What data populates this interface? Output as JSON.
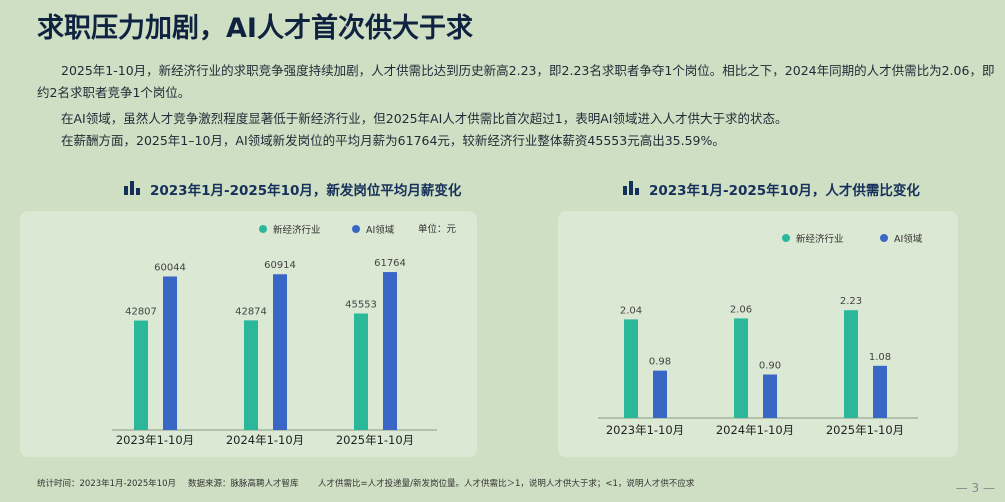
{
  "title": "求职压力加剧，AI人才首次供大于求",
  "paragraphs": [
    "2025年1-10月，新经济行业的求职竞争强度持续加剧，人才供需比达到历史新高2.23，即2.23名求职者争夺1个岗位。相比之下，2024年同期的人才供需比为2.06，即约2名求职者竞争1个岗位。",
    "在AI领域，虽然人才竞争激烈程度显著低于新经济行业，但2025年AI人才供需比首次超过1，表明AI领域进入人才供大于求的状态。",
    "在薪酬方面，2025年1–10月，AI领域新发岗位的平均月薪为61764元，较新经济行业整体薪资45553元高出35.59%。"
  ],
  "colors": {
    "teal": "#2bb79a",
    "blue": "#3a67c6",
    "title": "#0f2340"
  },
  "chart_data": [
    {
      "type": "bar",
      "title": "2023年1月-2025年10月，新发岗位平均月薪变化",
      "unit_label": "单位：元",
      "categories": [
        "2023年1-10月",
        "2024年1-10月",
        "2025年1-10月"
      ],
      "series": [
        {
          "name": "新经济行业",
          "values": [
            42807,
            42874,
            45553
          ]
        },
        {
          "name": "AI领域",
          "values": [
            60044,
            60914,
            61764
          ]
        }
      ],
      "ylim": [
        0,
        70000
      ],
      "legend": "top-right",
      "grid": false
    },
    {
      "type": "bar",
      "title": "2023年1月-2025年10月，人才供需比变化",
      "categories": [
        "2023年1-10月",
        "2024年1-10月",
        "2025年1-10月"
      ],
      "series": [
        {
          "name": "新经济行业",
          "values": [
            2.04,
            2.06,
            2.23
          ]
        },
        {
          "name": "AI领域",
          "values": [
            0.98,
            0.9,
            1.08
          ]
        }
      ],
      "ylim": [
        0,
        2.4
      ],
      "legend": "top-right",
      "grid": false
    }
  ],
  "footer": {
    "time": "统计时间：2023年1月-2025年10月",
    "source": "数据来源：脉脉高聘人才智库",
    "note": "人才供需比=人才投递量/新发岗位量。人才供需比＞1，说明人才供大于求；<1，说明人才供不应求",
    "page": "— 3 —"
  }
}
